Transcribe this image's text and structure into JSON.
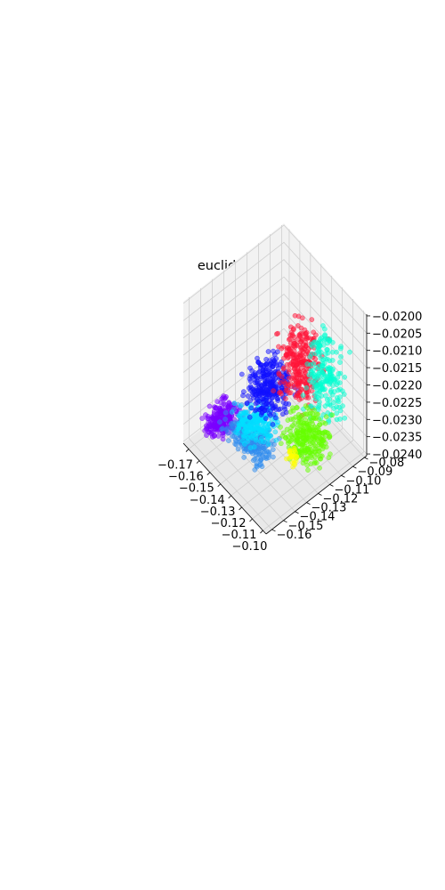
{
  "chart_data": {
    "type": "scatter",
    "projection": "3d",
    "title": "euclidean",
    "xlabel": "",
    "ylabel": "",
    "zlabel": "",
    "grid": true,
    "legend": "none",
    "xlim": [
      -0.175,
      -0.097
    ],
    "ylim": [
      -0.165,
      -0.078
    ],
    "zlim": [
      -0.02405,
      -0.01995
    ],
    "x_ticks": [
      "−0.17",
      "−0.16",
      "−0.15",
      "−0.14",
      "−0.13",
      "−0.12",
      "−0.11",
      "−0.10"
    ],
    "y_ticks": [
      "−0.16",
      "−0.15",
      "−0.14",
      "−0.13",
      "−0.12",
      "−0.11",
      "−0.10",
      "−0.09",
      "−0.08"
    ],
    "z_ticks": [
      "−0.0240",
      "−0.0235",
      "−0.0230",
      "−0.0225",
      "−0.0220",
      "−0.0215",
      "−0.0210",
      "−0.0205",
      "−0.0200"
    ],
    "series": [
      {
        "color": "#7a00ff",
        "count": 220,
        "x": [
          -0.172,
          -0.15
        ],
        "y": [
          -0.16,
          -0.13
        ],
        "z": [
          -0.0236,
          -0.0232
        ]
      },
      {
        "color": "#2e8cf0",
        "count": 260,
        "x": [
          -0.165,
          -0.125
        ],
        "y": [
          -0.15,
          -0.12
        ],
        "z": [
          -0.024,
          -0.0233
        ]
      },
      {
        "color": "#00e0ff",
        "count": 200,
        "x": [
          -0.16,
          -0.13
        ],
        "y": [
          -0.145,
          -0.115
        ],
        "z": [
          -0.0238,
          -0.023
        ]
      },
      {
        "color": "#1010ff",
        "count": 300,
        "x": [
          -0.155,
          -0.125
        ],
        "y": [
          -0.14,
          -0.105
        ],
        "z": [
          -0.0232,
          -0.0215
        ]
      },
      {
        "color": "#ff1438",
        "count": 280,
        "x": [
          -0.14,
          -0.112
        ],
        "y": [
          -0.125,
          -0.092
        ],
        "z": [
          -0.0228,
          -0.0203
        ]
      },
      {
        "color": "#00ffd2",
        "count": 200,
        "x": [
          -0.13,
          -0.1
        ],
        "y": [
          -0.11,
          -0.085
        ],
        "z": [
          -0.0232,
          -0.0205
        ]
      },
      {
        "color": "#66ff00",
        "count": 260,
        "x": [
          -0.13,
          -0.1
        ],
        "y": [
          -0.13,
          -0.095
        ],
        "z": [
          -0.024,
          -0.0225
        ]
      },
      {
        "color": "#ffff00",
        "count": 25,
        "x": [
          -0.125,
          -0.115
        ],
        "y": [
          -0.125,
          -0.115
        ],
        "z": [
          -0.024,
          -0.0236
        ]
      }
    ]
  }
}
